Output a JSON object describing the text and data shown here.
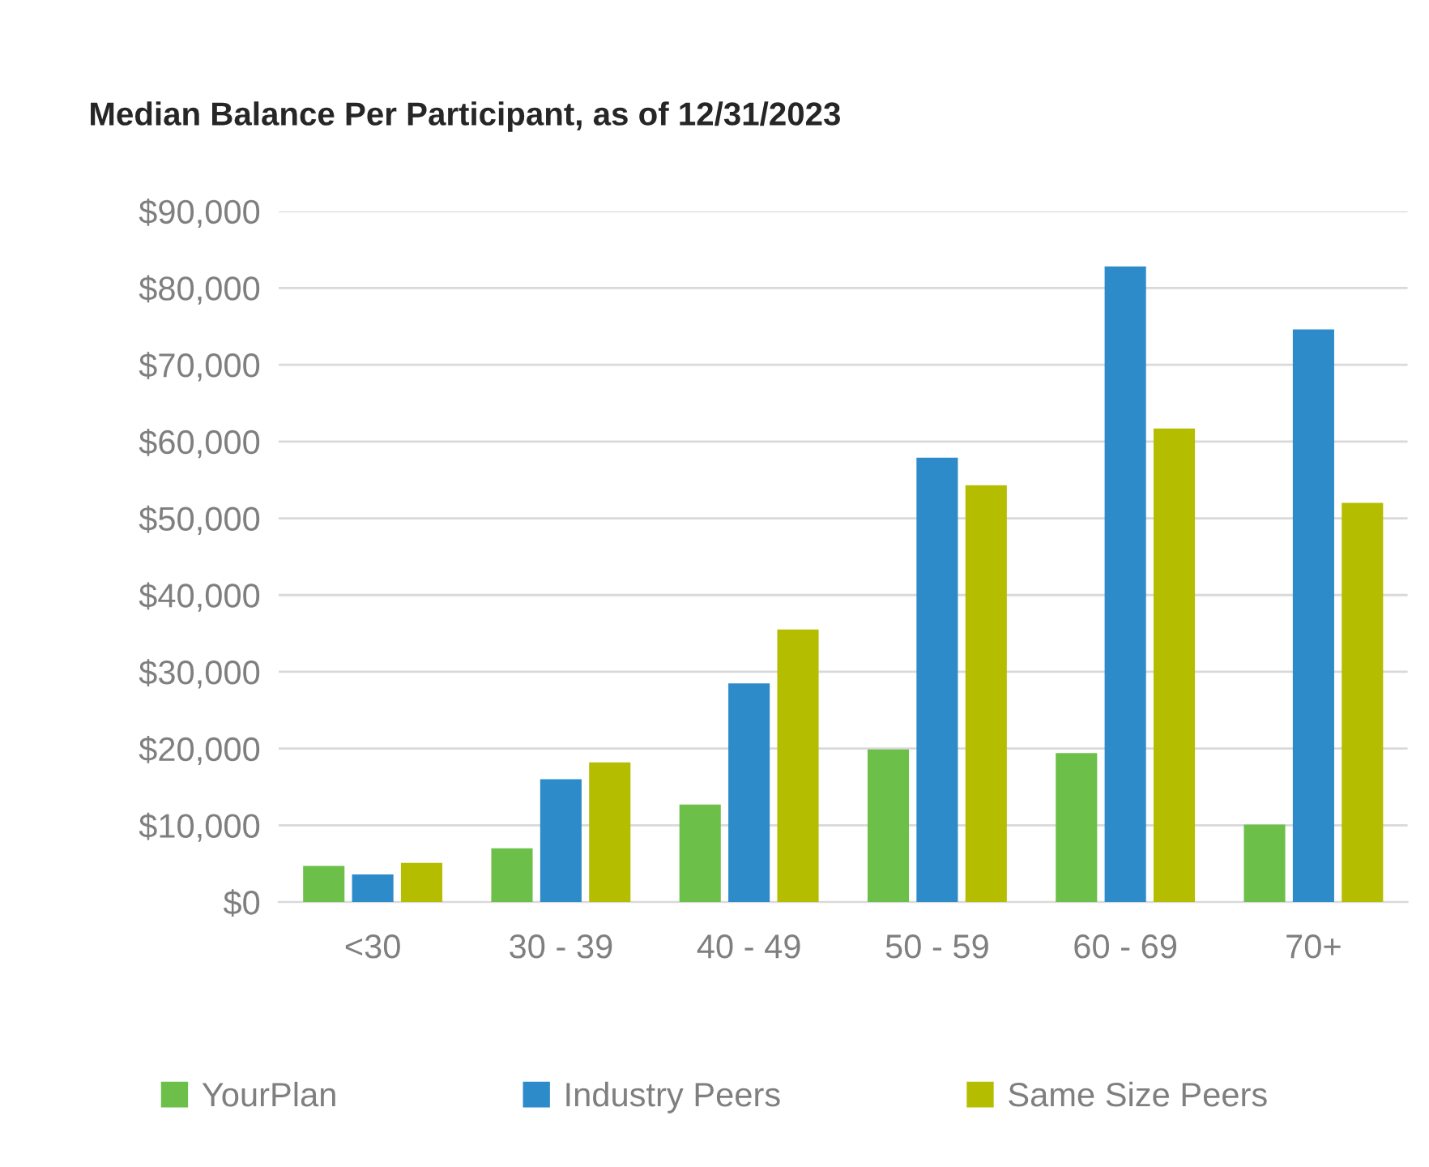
{
  "chart_data": {
    "type": "bar",
    "title": "Median Balance Per Participant, as of 12/31/2023",
    "categories": [
      "<30",
      "30 - 39",
      "40 - 49",
      "50 - 59",
      "60 - 69",
      "70+"
    ],
    "series": [
      {
        "name": "YourPlan",
        "color": "#6cc04a",
        "values": [
          4700,
          7000,
          12700,
          19900,
          19400,
          10100
        ]
      },
      {
        "name": "Industry Peers",
        "color": "#2e8bc9",
        "values": [
          3600,
          16000,
          28500,
          57900,
          82800,
          74600
        ]
      },
      {
        "name": "Same Size Peers",
        "color": "#b5bd00",
        "values": [
          5100,
          18200,
          35500,
          54300,
          61700,
          52000
        ]
      }
    ],
    "ylim": [
      0,
      90000
    ],
    "yticks": [
      {
        "value": 0,
        "label": "$0"
      },
      {
        "value": 10000,
        "label": "$10,000"
      },
      {
        "value": 20000,
        "label": "$20,000"
      },
      {
        "value": 30000,
        "label": "$30,000"
      },
      {
        "value": 40000,
        "label": "$40,000"
      },
      {
        "value": 50000,
        "label": "$50,000"
      },
      {
        "value": 60000,
        "label": "$60,000"
      },
      {
        "value": 70000,
        "label": "$70,000"
      },
      {
        "value": 80000,
        "label": "$80,000"
      },
      {
        "value": 90000,
        "label": "$90,000"
      }
    ],
    "grid": "y",
    "legend": "bottom"
  }
}
